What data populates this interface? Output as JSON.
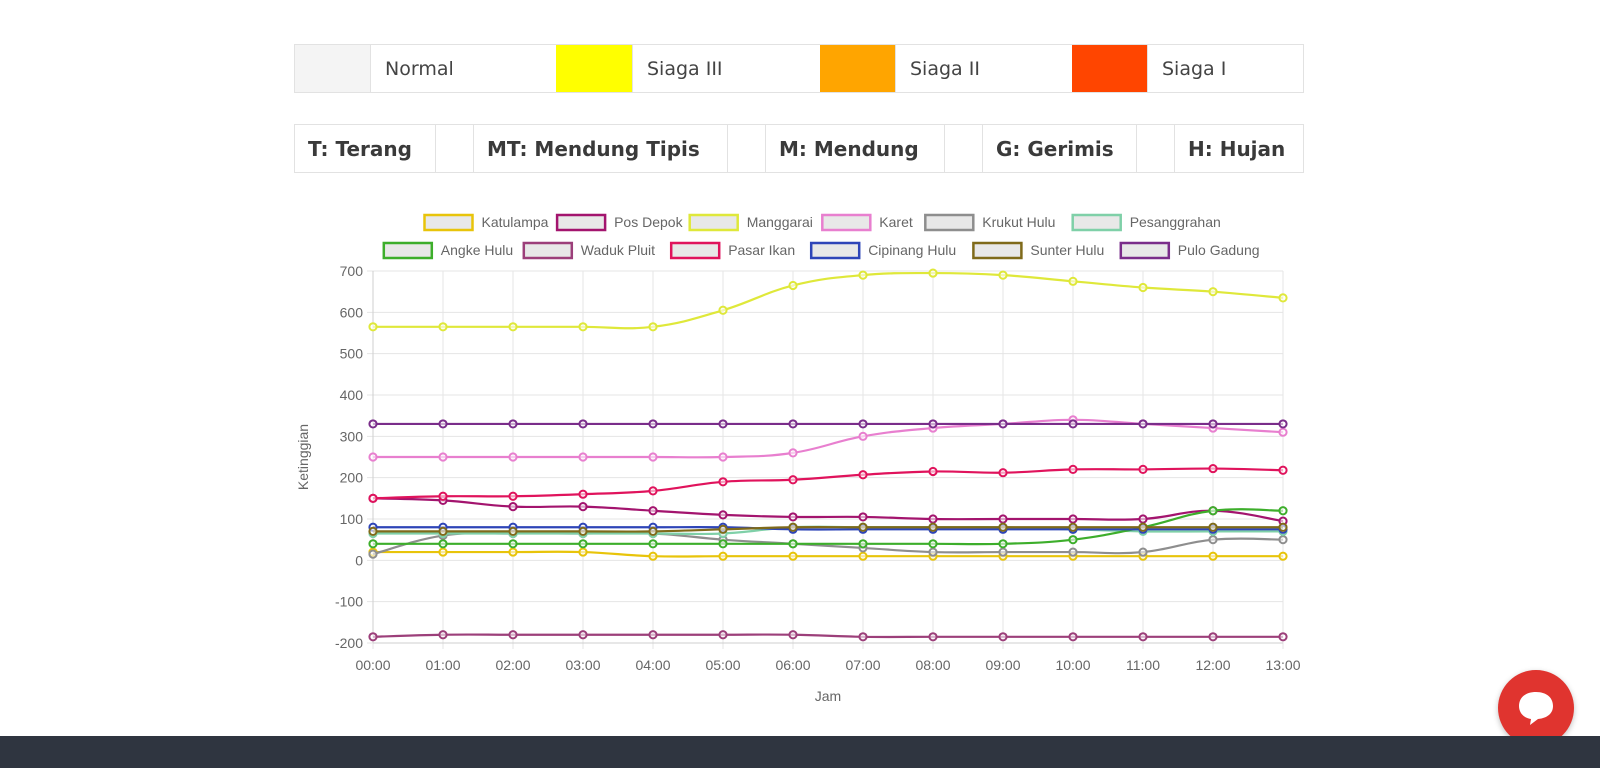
{
  "status_legend": [
    {
      "label": "Normal",
      "color": "#f4f4f4"
    },
    {
      "label": "Siaga III",
      "color": "#ffff00"
    },
    {
      "label": "Siaga II",
      "color": "#ffa500"
    },
    {
      "label": "Siaga I",
      "color": "#ff4500"
    }
  ],
  "weather_legend": [
    "T: Terang",
    "MT: Mendung Tipis",
    "M: Mendung",
    "G: Gerimis",
    "H: Hujan"
  ],
  "chart_data": {
    "type": "line",
    "xlabel": "Jam",
    "ylabel": "Ketinggian",
    "ylim": [
      -200,
      700
    ],
    "yticks": [
      700,
      600,
      500,
      400,
      300,
      200,
      100,
      0,
      -100,
      -200
    ],
    "grid": true,
    "legend_position": "top",
    "x": [
      "00:00",
      "01:00",
      "02:00",
      "03:00",
      "04:00",
      "05:00",
      "06:00",
      "07:00",
      "08:00",
      "09:00",
      "10:00",
      "11:00",
      "12:00",
      "13:00"
    ],
    "series": [
      {
        "name": "Katulampa",
        "color": "#e8c40a",
        "values": [
          20,
          20,
          20,
          20,
          10,
          10,
          10,
          10,
          10,
          10,
          10,
          10,
          10,
          10
        ]
      },
      {
        "name": "Pos Depok",
        "color": "#a3146e",
        "values": [
          150,
          145,
          130,
          130,
          120,
          110,
          105,
          105,
          100,
          100,
          100,
          100,
          120,
          95
        ]
      },
      {
        "name": "Manggarai",
        "color": "#dfe83a",
        "values": [
          565,
          565,
          565,
          565,
          565,
          605,
          665,
          690,
          695,
          690,
          675,
          660,
          650,
          635
        ]
      },
      {
        "name": "Karet",
        "color": "#e87fcf",
        "values": [
          250,
          250,
          250,
          250,
          250,
          250,
          260,
          300,
          320,
          330,
          340,
          330,
          320,
          310
        ]
      },
      {
        "name": "Krukut Hulu",
        "color": "#8e8e8e",
        "values": [
          15,
          60,
          65,
          65,
          65,
          50,
          40,
          30,
          20,
          20,
          20,
          20,
          50,
          50
        ]
      },
      {
        "name": "Pesanggrahan",
        "color": "#7fd0a8",
        "values": [
          65,
          65,
          65,
          65,
          65,
          65,
          80,
          80,
          80,
          80,
          75,
          70,
          70,
          70
        ]
      },
      {
        "name": "Angke Hulu",
        "color": "#3dae2b",
        "values": [
          40,
          40,
          40,
          40,
          40,
          40,
          40,
          40,
          40,
          40,
          50,
          80,
          120,
          120
        ]
      },
      {
        "name": "Waduk Pluit",
        "color": "#9c3f7a",
        "values": [
          -185,
          -180,
          -180,
          -180,
          -180,
          -180,
          -180,
          -185,
          -185,
          -185,
          -185,
          -185,
          -185,
          -185
        ]
      },
      {
        "name": "Pasar Ikan",
        "color": "#e0135c",
        "values": [
          150,
          155,
          155,
          160,
          168,
          190,
          195,
          207,
          215,
          212,
          220,
          220,
          222,
          218
        ]
      },
      {
        "name": "Cipinang Hulu",
        "color": "#2e45b8",
        "values": [
          80,
          80,
          80,
          80,
          80,
          80,
          75,
          75,
          75,
          75,
          75,
          75,
          75,
          75
        ]
      },
      {
        "name": "Sunter Hulu",
        "color": "#7f6a1a",
        "values": [
          70,
          70,
          70,
          70,
          70,
          75,
          80,
          80,
          80,
          80,
          80,
          80,
          80,
          80
        ]
      },
      {
        "name": "Pulo Gadung",
        "color": "#7a2d8a",
        "values": [
          330,
          330,
          330,
          330,
          330,
          330,
          330,
          330,
          330,
          330,
          330,
          330,
          330,
          330
        ]
      }
    ]
  }
}
